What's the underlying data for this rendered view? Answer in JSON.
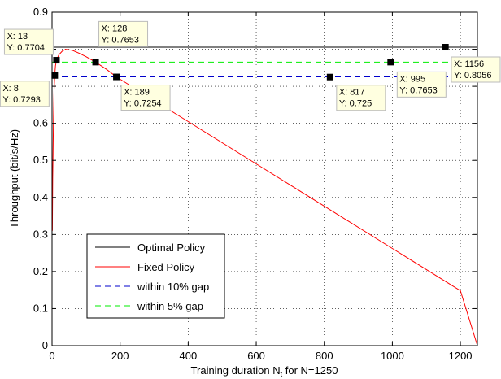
{
  "chart_data": {
    "type": "line",
    "title": "",
    "xlabel": "Training duration N",
    "xlabel_subscript": "t",
    "xlabel_suffix": " for N=1250",
    "ylabel": "Throughput (bit/s/Hz)",
    "xlim": [
      0,
      1250
    ],
    "ylim": [
      0,
      0.9
    ],
    "xticks": [
      0,
      200,
      400,
      600,
      800,
      1000,
      1200
    ],
    "xtick_labels": [
      "0",
      "200",
      "400",
      "600",
      "800",
      "1000",
      "1200"
    ],
    "yticks": [
      0,
      0.1,
      0.2,
      0.3,
      0.4,
      0.5,
      0.6,
      0.7,
      0.8,
      0.9
    ],
    "ytick_labels": [
      "0",
      "0.1",
      "0.2",
      "0.3",
      "0.4",
      "0.5",
      "0.6",
      "0.7",
      "0.8",
      "0.9"
    ],
    "grid": true,
    "legend_position": "lower-left",
    "series": [
      {
        "name": "Optimal Policy",
        "style": "solid",
        "color": "#000000",
        "x": [
          0,
          1250
        ],
        "y": [
          0.8056,
          0.8056
        ]
      },
      {
        "name": "Fixed Policy",
        "style": "solid",
        "color": "#ff0000",
        "x": [
          1,
          2,
          4,
          6,
          8,
          10,
          13,
          20,
          30,
          40,
          60,
          80,
          100,
          128,
          160,
          189,
          250,
          400,
          600,
          817,
          1000,
          1200,
          1250
        ],
        "y": [
          0.31,
          0.45,
          0.6,
          0.69,
          0.7293,
          0.755,
          0.7704,
          0.785,
          0.795,
          0.8,
          0.797,
          0.789,
          0.78,
          0.7653,
          0.746,
          0.7254,
          0.6904,
          0.6048,
          0.4907,
          0.3669,
          0.2624,
          0.1483,
          0.0
        ]
      },
      {
        "name": "within 10% gap",
        "style": "dashed",
        "color": "#0000cc",
        "x": [
          0,
          1250
        ],
        "y": [
          0.7254,
          0.7254
        ]
      },
      {
        "name": "within 5% gap",
        "style": "dashed",
        "color": "#00ee00",
        "x": [
          0,
          1250
        ],
        "y": [
          0.7653,
          0.7653
        ]
      }
    ],
    "datatips": [
      {
        "x": 13,
        "y": 0.7704,
        "line1": "X: 13",
        "line2": "Y: 0.7704"
      },
      {
        "x": 8,
        "y": 0.7293,
        "line1": "X: 8",
        "line2": "Y: 0.7293"
      },
      {
        "x": 128,
        "y": 0.7653,
        "line1": "X: 128",
        "line2": "Y: 0.7653"
      },
      {
        "x": 189,
        "y": 0.7254,
        "line1": "X: 189",
        "line2": "Y: 0.7254"
      },
      {
        "x": 817,
        "y": 0.725,
        "line1": "X: 817",
        "line2": "Y: 0.725"
      },
      {
        "x": 995,
        "y": 0.7653,
        "line1": "X: 995",
        "line2": "Y: 0.7653"
      },
      {
        "x": 1156,
        "y": 0.8056,
        "line1": "X: 1156",
        "line2": "Y: 0.8056"
      }
    ]
  }
}
